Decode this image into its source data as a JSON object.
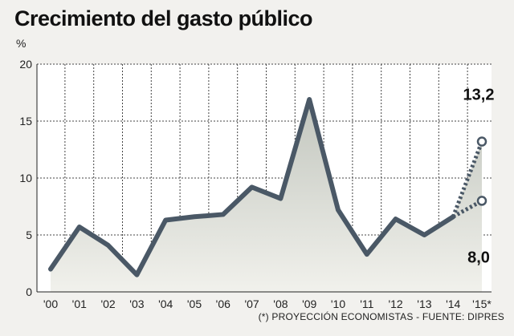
{
  "chart_data": {
    "type": "line",
    "title": "Crecimiento del gasto público",
    "ylabel": "%",
    "ylim": [
      0,
      20
    ],
    "yticks": [
      0,
      5,
      10,
      15,
      20
    ],
    "grid": true,
    "categories": [
      "'00",
      "'01",
      "'02",
      "'03",
      "'04",
      "'05",
      "'06",
      "'07",
      "'08",
      "'09",
      "'10",
      "'11",
      "'12",
      "'13",
      "'14",
      "'15*"
    ],
    "series": [
      {
        "values": [
          2.0,
          5.7,
          4.1,
          1.5,
          6.3,
          6.6,
          6.8,
          9.2,
          8.2,
          16.9,
          7.2,
          3.3,
          6.4,
          5.0,
          6.6,
          null
        ]
      }
    ],
    "projections": [
      {
        "from": "'14",
        "to": "'15*",
        "start": 6.6,
        "value": 13.2,
        "label": "13,2"
      },
      {
        "from": "'14",
        "to": "'15*",
        "start": 6.6,
        "value": 8.0,
        "label": "8,0"
      }
    ],
    "footnote": "(*) PROYECCIÓN ECONOMISTAS - FUENTE: DIPRES",
    "colors": {
      "line": "#4a5866",
      "area_top": "#c2c6be",
      "area_bottom": "#f1f1ec",
      "plot_bg": "#ffffff",
      "grid": "#444444",
      "page_bg": "#f2f1ee"
    }
  }
}
